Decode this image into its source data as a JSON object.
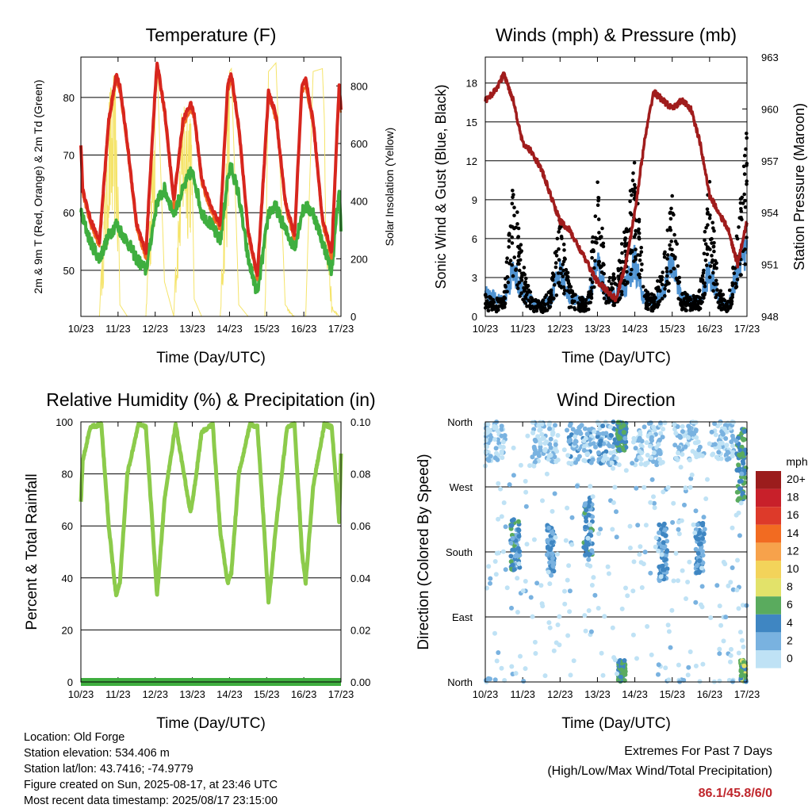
{
  "x_ticks": [
    "10/23",
    "11/23",
    "12/23",
    "13/23",
    "14/23",
    "15/23",
    "16/23",
    "17/23"
  ],
  "colors": {
    "temp2m": "#d7261e",
    "temp9m": "#f26b21",
    "dewpoint": "#3fae3f",
    "solar": "#f5e46a",
    "gust": "#000000",
    "wind": "#4f93d2",
    "pressure": "#a01c1c",
    "rh": "#8ccb4b",
    "precip": "#3fae3f"
  },
  "chart_data": [
    {
      "type": "line",
      "title": "Temperature (F)",
      "xlabel": "Time (Day/UTC)",
      "ylabel": "2m & 9m T (Red, Orange) & 2m Td (Green)",
      "y2label": "Solar Insolation (Yellow)",
      "ylim": [
        42,
        87
      ],
      "y2lim": [
        0,
        900
      ],
      "yticks": [
        50,
        60,
        70,
        80
      ],
      "y2ticks": [
        0,
        200,
        400,
        600,
        800
      ],
      "x": [
        0,
        0.05,
        0.25,
        0.5,
        0.75,
        0.95,
        1.05,
        1.25,
        1.5,
        1.75,
        1.95,
        2.05,
        2.25,
        2.5,
        2.75,
        2.95,
        3.05,
        3.25,
        3.5,
        3.75,
        3.95,
        4.05,
        4.25,
        4.5,
        4.75,
        4.95,
        5.05,
        5.25,
        5.5,
        5.75,
        5.95,
        6.05,
        6.25,
        6.5,
        6.75,
        6.95,
        7.0
      ],
      "series": [
        {
          "values": [
            72,
            64,
            59,
            55,
            76,
            84,
            82,
            72,
            58,
            53,
            76,
            86,
            78,
            62,
            76,
            79,
            77,
            66,
            61,
            58,
            82,
            84,
            75,
            57,
            49,
            70,
            81,
            77,
            62,
            56,
            82,
            83,
            76,
            59,
            53,
            82,
            78
          ]
        },
        {
          "values": [
            71,
            63,
            58,
            54,
            75,
            83,
            81,
            71,
            57,
            52,
            75,
            85,
            77,
            61,
            75,
            78,
            76,
            65,
            60,
            57,
            81,
            83,
            74,
            56,
            48,
            69,
            80,
            76,
            61,
            55,
            81,
            82,
            75,
            58,
            52,
            81,
            77
          ]
        },
        {
          "values": [
            60,
            59,
            55,
            52,
            56,
            58,
            57,
            55,
            52,
            50,
            58,
            62,
            64,
            60,
            64,
            67,
            66,
            60,
            58,
            55,
            66,
            68,
            63,
            52,
            46,
            55,
            60,
            61,
            57,
            54,
            60,
            61,
            60,
            55,
            50,
            64,
            57
          ]
        },
        {
          "values": [
            0,
            0,
            0,
            0,
            820,
            860,
            40,
            0,
            0,
            0,
            820,
            880,
            120,
            0,
            850,
            870,
            60,
            0,
            0,
            0,
            840,
            860,
            40,
            0,
            0,
            0,
            850,
            880,
            40,
            0,
            0,
            0,
            850,
            860,
            40,
            0,
            0
          ]
        }
      ]
    },
    {
      "type": "line",
      "title": "Winds (mph) & Pressure (mb)",
      "xlabel": "Time (Day/UTC)",
      "ylabel": "Sonic Wind & Gust (Blue, Black)",
      "y2label": "Station Pressure (Maroon)",
      "ylim": [
        0,
        20
      ],
      "y2lim": [
        948,
        963
      ],
      "yticks": [
        0,
        3,
        6,
        9,
        12,
        15,
        18
      ],
      "y2ticks": [
        948,
        951,
        954,
        957,
        960,
        963
      ],
      "x": [
        0,
        0.25,
        0.5,
        0.75,
        1.0,
        1.25,
        1.5,
        1.75,
        2.0,
        2.25,
        2.5,
        2.75,
        3.0,
        3.25,
        3.5,
        3.75,
        4.0,
        4.25,
        4.5,
        4.75,
        5.0,
        5.25,
        5.5,
        5.75,
        6.0,
        6.25,
        6.5,
        6.75,
        7.0
      ],
      "series": [
        {
          "values": [
            1.5,
            1.2,
            1.0,
            3.0,
            1.5,
            1.0,
            0.8,
            1.0,
            3.0,
            1.2,
            1.0,
            1.0,
            3.5,
            1.2,
            1.5,
            2.0,
            3.5,
            1.0,
            1.0,
            1.5,
            3.5,
            1.2,
            1.0,
            1.0,
            3.0,
            1.0,
            0.8,
            3.0,
            4.0
          ]
        },
        {
          "values": [
            1.3,
            1.0,
            1.1,
            8.0,
            3.0,
            1.0,
            0.8,
            1.5,
            6.0,
            1.8,
            1.0,
            1.2,
            8.0,
            2.0,
            2.5,
            5.0,
            9.0,
            1.5,
            1.2,
            3.0,
            7.0,
            1.5,
            1.0,
            1.5,
            8.0,
            1.5,
            1.0,
            5.0,
            11.0
          ]
        },
        {
          "values": [
            960.5,
            961.0,
            962.0,
            960.5,
            958.0,
            957.5,
            956.5,
            955.0,
            953.5,
            953.0,
            952.0,
            951.0,
            950.0,
            949.5,
            949.0,
            951.0,
            954.0,
            958.0,
            961.0,
            960.5,
            960.0,
            960.5,
            960.0,
            958.0,
            955.0,
            954.0,
            953.0,
            951.0,
            953.5
          ]
        }
      ]
    },
    {
      "type": "line",
      "title": "Relative Humidity (%) & Precipitation (in)",
      "xlabel": "Time (Day/UTC)",
      "ylabel": "Percent & Total Rainfall",
      "ylim": [
        0,
        100
      ],
      "y2lim": [
        0,
        0.1
      ],
      "yticks": [
        0,
        20,
        40,
        60,
        80,
        100
      ],
      "y2ticks": [
        "0.00",
        "0.02",
        "0.04",
        "0.06",
        "0.08",
        "0.10"
      ],
      "x": [
        0,
        0.05,
        0.25,
        0.55,
        0.75,
        0.95,
        1.05,
        1.25,
        1.55,
        1.75,
        1.95,
        2.05,
        2.25,
        2.55,
        2.75,
        2.95,
        3.05,
        3.25,
        3.55,
        3.75,
        3.95,
        4.05,
        4.25,
        4.55,
        4.75,
        4.95,
        5.05,
        5.25,
        5.55,
        5.75,
        5.95,
        6.05,
        6.25,
        6.55,
        6.75,
        6.95,
        7.0
      ],
      "series": [
        {
          "values": [
            69,
            85,
            98,
            99,
            60,
            33,
            38,
            80,
            99,
            98,
            55,
            33,
            70,
            99,
            82,
            65,
            74,
            96,
            99,
            58,
            38,
            42,
            80,
            99,
            98,
            55,
            30,
            60,
            98,
            99,
            50,
            38,
            75,
            99,
            98,
            62,
            88
          ]
        },
        {
          "values": [
            0,
            0,
            0,
            0,
            0,
            0,
            0,
            0,
            0,
            0,
            0,
            0,
            0,
            0,
            0,
            0,
            0,
            0,
            0,
            0,
            0,
            0,
            0,
            0,
            0,
            0,
            0,
            0,
            0,
            0,
            0,
            0,
            0,
            0,
            0,
            0,
            0
          ]
        }
      ]
    },
    {
      "type": "scatter",
      "title": "Wind Direction",
      "xlabel": "Time (Day/UTC)",
      "ylabel": "Direction (Colored By Speed)",
      "ylim": [
        0,
        360
      ],
      "ytick_labels": [
        "North",
        "East",
        "South",
        "West",
        "North"
      ],
      "colorbar_title": "mph",
      "colorbar_labels": [
        "20+",
        "18",
        "16",
        "14",
        "12",
        "10",
        "8",
        "6",
        "4",
        "2",
        "0"
      ],
      "colorbar_colors": [
        "#9b1c1c",
        "#c8202a",
        "#dd3a2a",
        "#f26b21",
        "#f7a24b",
        "#f3d35a",
        "#e2e26a",
        "#5aab5e",
        "#3f86c2",
        "#79b2e0",
        "#bfe2f5"
      ],
      "clusters": [
        {
          "x": 0.2,
          "dir": 335,
          "spread_x": 0.35,
          "spread_d": 30,
          "speed": 1
        },
        {
          "x": 0.8,
          "dir": 190,
          "spread_x": 0.12,
          "spread_d": 35,
          "speed": 4
        },
        {
          "x": 1.55,
          "dir": 330,
          "spread_x": 0.35,
          "spread_d": 30,
          "speed": 1
        },
        {
          "x": 1.75,
          "dir": 185,
          "spread_x": 0.1,
          "spread_d": 35,
          "speed": 3
        },
        {
          "x": 2.55,
          "dir": 330,
          "spread_x": 0.35,
          "spread_d": 28,
          "speed": 2
        },
        {
          "x": 2.75,
          "dir": 215,
          "spread_x": 0.12,
          "spread_d": 40,
          "speed": 4
        },
        {
          "x": 3.3,
          "dir": 330,
          "spread_x": 0.3,
          "spread_d": 30,
          "speed": 2
        },
        {
          "x": 3.65,
          "dir": 340,
          "spread_x": 0.12,
          "spread_d": 20,
          "speed": 5
        },
        {
          "x": 3.65,
          "dir": 15,
          "spread_x": 0.1,
          "spread_d": 15,
          "speed": 5
        },
        {
          "x": 4.35,
          "dir": 330,
          "spread_x": 0.35,
          "spread_d": 30,
          "speed": 1
        },
        {
          "x": 4.75,
          "dir": 180,
          "spread_x": 0.12,
          "spread_d": 40,
          "speed": 3
        },
        {
          "x": 5.4,
          "dir": 335,
          "spread_x": 0.35,
          "spread_d": 28,
          "speed": 1
        },
        {
          "x": 5.75,
          "dir": 185,
          "spread_x": 0.12,
          "spread_d": 35,
          "speed": 3
        },
        {
          "x": 6.35,
          "dir": 335,
          "spread_x": 0.3,
          "spread_d": 28,
          "speed": 1
        },
        {
          "x": 6.85,
          "dir": 300,
          "spread_x": 0.12,
          "spread_d": 50,
          "speed": 5
        },
        {
          "x": 6.9,
          "dir": 15,
          "spread_x": 0.08,
          "spread_d": 15,
          "speed": 6
        }
      ]
    }
  ],
  "info": {
    "location": "Location: Old Forge",
    "elevation": "Station elevation: 534.406 m",
    "latlon": "Station lat/lon: 43.7416; -74.9779",
    "created": "Figure created on Sun, 2025-08-17, at 23:46 UTC",
    "timestamp": "Most recent data timestamp: 2025/08/17 23:15:00"
  },
  "extremes": {
    "title": "Extremes For Past 7 Days",
    "subtitle": "(High/Low/Max Wind/Total Precipitation)",
    "values": "86.1/45.8/6/0"
  }
}
